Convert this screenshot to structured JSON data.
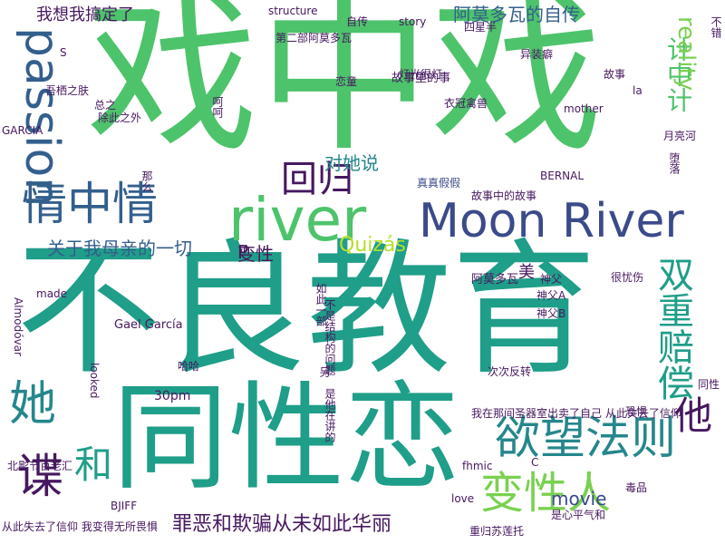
{
  "colors": {
    "background": "#ffffff",
    "dark_purple": "#46185f",
    "indigo": "#3b4a8a",
    "blue": "#335f8d",
    "teal": "#25878c",
    "green_teal": "#1f9e89",
    "green": "#4dc36b",
    "light_green": "#7ad151",
    "lime": "#b5de2b",
    "yellow": "#dde318"
  },
  "words": [
    "戏中戏",
    "不良教育",
    "同性恋",
    "Moon River",
    "river",
    "欲望法则",
    "变性人",
    "情中情",
    "passion",
    "回归",
    "双重赔偿",
    "她",
    "谍",
    "和",
    "他",
    "罪恶和欺骗从未如此华丽",
    "阿莫多瓦的自传",
    "关于我母亲的一切",
    "计中计",
    "reality",
    "对她说",
    "变性",
    "Quizás",
    "movie",
    "我想我搞定了",
    "Gael García",
    "故事里的事",
    "故事中的故事",
    "阿莫多瓦",
    "真真假假",
    "吾栖之肤",
    "我在那间圣器室出卖了自己 从此失去了信仰",
    "从此失去了信仰 我变得无所畏惧",
    "重归苏莲托",
    "次次反转",
    "是心平气和",
    "第二部阿莫多瓦",
    "四星半",
    "恋童",
    "衣冠禽兽",
    "异装癖",
    "月亮河",
    "北影节百老汇",
    "除此之外",
    "神父A",
    "神父B",
    "很忧伤",
    "Almodóvar",
    "made",
    "looked",
    "structure",
    "story",
    "GARCIA",
    "BERNAL",
    "BJIFF",
    "fhmic",
    "love",
    "30pm",
    "哈哈",
    "美",
    "神父",
    "自传",
    "故事",
    "mother",
    "la",
    "总之",
    "同性",
    "毒品",
    "恐惧",
    "堕落",
    "呵呵",
    "那么",
    "如此一部",
    "不是结构的问题 是他在讲的",
    "C",
    "P",
    "S",
    "不错",
    "灯光很灯",
    "另"
  ]
}
